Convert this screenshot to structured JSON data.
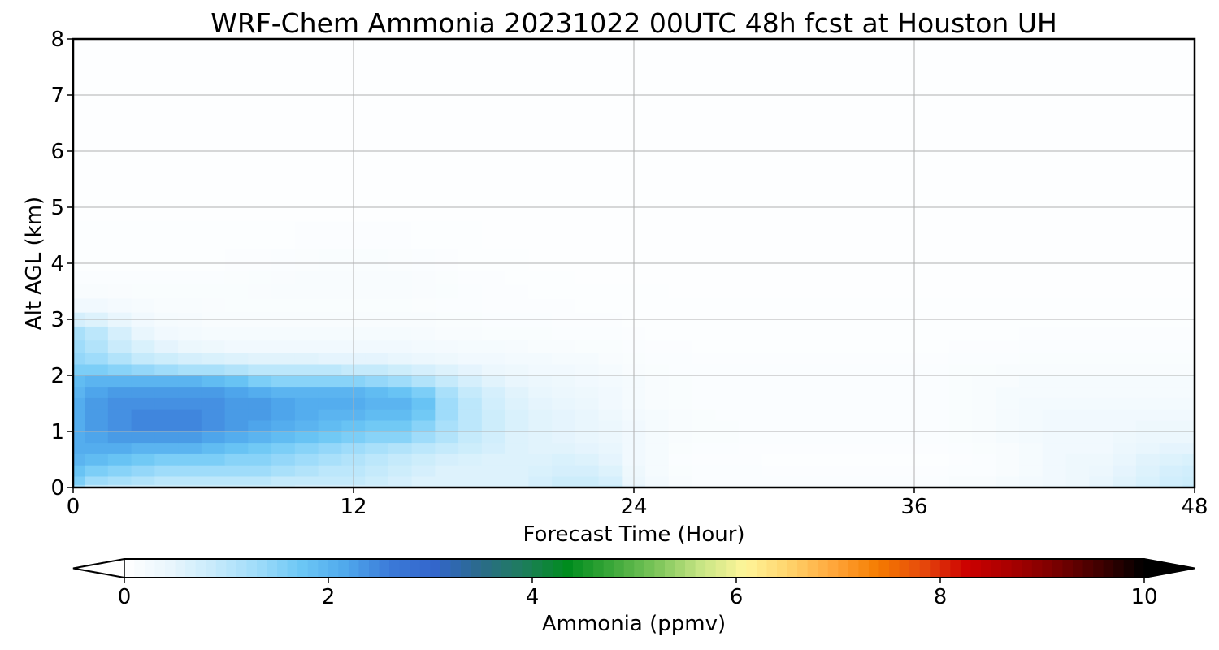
{
  "chart_data": {
    "type": "heatmap",
    "title": "WRF-Chem Ammonia  20231022 00UTC 48h fcst at Houston UH",
    "xlabel": "Forecast Time (Hour)",
    "ylabel": "Alt AGL (km)",
    "xlim": [
      0,
      48
    ],
    "ylim": [
      0,
      8
    ],
    "x_ticks": [
      "0",
      "12",
      "24",
      "36",
      "48"
    ],
    "y_ticks": [
      "0",
      "1",
      "2",
      "3",
      "4",
      "5",
      "6",
      "7",
      "8"
    ],
    "grid": true,
    "colorbar": {
      "label": "Ammonia  (ppmv)",
      "range": [
        0,
        10
      ],
      "ticks": [
        "0",
        "2",
        "4",
        "6",
        "8",
        "10"
      ],
      "extend": "both",
      "colors": [
        "#ffffff",
        "#eaf6fd",
        "#c8ebfb",
        "#9fdcfa",
        "#6cc7f5",
        "#4fa8ec",
        "#3b7ad8",
        "#3366cc",
        "#2b6a8c",
        "#1e7d5c",
        "#008c1e",
        "#3ca83a",
        "#7cc55a",
        "#c6e584",
        "#fff59a",
        "#ffd36b",
        "#ffa63a",
        "#f57c00",
        "#e64a0c",
        "#cc0000",
        "#a80000",
        "#7a0000",
        "#400000",
        "#000000"
      ]
    },
    "x": [
      0,
      1,
      2,
      3,
      4,
      5,
      6,
      7,
      8,
      9,
      10,
      11,
      12,
      13,
      14,
      15,
      16,
      17,
      18,
      19,
      20,
      21,
      22,
      23,
      24,
      25,
      26,
      27,
      28,
      29,
      30,
      31,
      32,
      33,
      34,
      35,
      36,
      37,
      38,
      39,
      40,
      41,
      42,
      43,
      44,
      45,
      46,
      47,
      48
    ],
    "z_levels": [
      0,
      0.1,
      0.3,
      0.5,
      0.7,
      0.9,
      1.1,
      1.3,
      1.5,
      1.7,
      1.9,
      2.1,
      2.3,
      2.5,
      2.75,
      3,
      3.25,
      3.5,
      3.75,
      4,
      4.5,
      5,
      6,
      7,
      8
    ],
    "values_ppmv": [
      [
        1.3,
        0.9,
        0.85,
        0.8,
        0.8,
        0.8,
        0.8,
        0.8,
        0.8,
        0.8,
        0.7,
        0.7,
        0.7,
        0.7,
        0.7,
        0.6,
        0.6,
        0.6,
        0.6,
        0.6,
        0.7,
        0.8,
        0.8,
        0.8,
        0.5,
        0.3,
        0.2,
        0.15,
        0.15,
        0.15,
        0.15,
        0.15,
        0.15,
        0.15,
        0.15,
        0.15,
        0.15,
        0.15,
        0.2,
        0.2,
        0.25,
        0.3,
        0.35,
        0.4,
        0.5,
        0.6,
        0.7,
        0.8,
        0.9
      ],
      [
        1.6,
        1.3,
        1.2,
        1.1,
        1.0,
        1.0,
        1.0,
        1.0,
        1.0,
        0.9,
        0.9,
        0.9,
        0.9,
        0.8,
        0.7,
        0.6,
        0.6,
        0.6,
        0.6,
        0.6,
        0.7,
        0.8,
        0.8,
        0.7,
        0.4,
        0.25,
        0.15,
        0.1,
        0.1,
        0.1,
        0.1,
        0.1,
        0.1,
        0.1,
        0.1,
        0.1,
        0.1,
        0.1,
        0.15,
        0.15,
        0.2,
        0.25,
        0.3,
        0.35,
        0.45,
        0.55,
        0.65,
        0.75,
        0.8
      ],
      [
        1.8,
        1.6,
        1.5,
        1.4,
        1.3,
        1.3,
        1.3,
        1.3,
        1.3,
        1.2,
        1.1,
        1.0,
        1.0,
        0.9,
        0.8,
        0.7,
        0.6,
        0.6,
        0.6,
        0.6,
        0.65,
        0.7,
        0.7,
        0.6,
        0.35,
        0.2,
        0.12,
        0.1,
        0.1,
        0.1,
        0.08,
        0.08,
        0.08,
        0.08,
        0.08,
        0.08,
        0.08,
        0.08,
        0.1,
        0.1,
        0.15,
        0.2,
        0.3,
        0.35,
        0.4,
        0.5,
        0.6,
        0.7,
        0.75
      ],
      [
        2.0,
        1.9,
        1.8,
        1.7,
        1.6,
        1.6,
        1.6,
        1.5,
        1.5,
        1.4,
        1.3,
        1.2,
        1.1,
        1.0,
        0.9,
        0.8,
        0.7,
        0.65,
        0.6,
        0.6,
        0.6,
        0.65,
        0.6,
        0.5,
        0.3,
        0.2,
        0.1,
        0.08,
        0.08,
        0.08,
        0.07,
        0.07,
        0.07,
        0.07,
        0.07,
        0.07,
        0.07,
        0.07,
        0.08,
        0.1,
        0.15,
        0.2,
        0.3,
        0.35,
        0.35,
        0.45,
        0.55,
        0.6,
        0.65
      ],
      [
        2.1,
        2.1,
        2.1,
        2.0,
        2.0,
        2.0,
        1.9,
        1.8,
        1.7,
        1.6,
        1.5,
        1.4,
        1.3,
        1.2,
        1.1,
        1.0,
        0.9,
        0.8,
        0.7,
        0.6,
        0.55,
        0.55,
        0.5,
        0.45,
        0.3,
        0.2,
        0.12,
        0.1,
        0.1,
        0.08,
        0.08,
        0.08,
        0.08,
        0.08,
        0.08,
        0.08,
        0.08,
        0.08,
        0.1,
        0.12,
        0.15,
        0.2,
        0.3,
        0.3,
        0.3,
        0.4,
        0.45,
        0.5,
        0.5
      ],
      [
        2.1,
        2.2,
        2.3,
        2.3,
        2.3,
        2.3,
        2.2,
        2.1,
        2.0,
        1.9,
        1.8,
        1.7,
        1.6,
        1.5,
        1.5,
        1.3,
        1.1,
        0.9,
        0.75,
        0.6,
        0.55,
        0.5,
        0.45,
        0.4,
        0.3,
        0.2,
        0.15,
        0.12,
        0.12,
        0.1,
        0.1,
        0.1,
        0.1,
        0.1,
        0.1,
        0.1,
        0.1,
        0.1,
        0.12,
        0.15,
        0.2,
        0.25,
        0.3,
        0.3,
        0.3,
        0.35,
        0.4,
        0.4,
        0.4
      ],
      [
        2.1,
        2.3,
        2.4,
        2.5,
        2.5,
        2.5,
        2.4,
        2.3,
        2.2,
        2.1,
        2.0,
        1.9,
        1.8,
        1.7,
        1.7,
        1.5,
        1.2,
        1.0,
        0.8,
        0.65,
        0.55,
        0.5,
        0.45,
        0.4,
        0.3,
        0.2,
        0.15,
        0.12,
        0.12,
        0.1,
        0.1,
        0.1,
        0.1,
        0.1,
        0.1,
        0.1,
        0.1,
        0.1,
        0.12,
        0.15,
        0.2,
        0.25,
        0.3,
        0.3,
        0.3,
        0.3,
        0.35,
        0.35,
        0.35
      ],
      [
        2.1,
        2.3,
        2.4,
        2.5,
        2.5,
        2.5,
        2.4,
        2.3,
        2.3,
        2.2,
        2.1,
        2.0,
        2.0,
        1.9,
        1.9,
        1.7,
        1.3,
        1.0,
        0.8,
        0.65,
        0.55,
        0.5,
        0.45,
        0.35,
        0.25,
        0.2,
        0.15,
        0.12,
        0.1,
        0.1,
        0.1,
        0.1,
        0.1,
        0.1,
        0.1,
        0.1,
        0.1,
        0.1,
        0.12,
        0.15,
        0.2,
        0.25,
        0.3,
        0.3,
        0.3,
        0.3,
        0.3,
        0.3,
        0.3
      ],
      [
        2.1,
        2.3,
        2.4,
        2.4,
        2.4,
        2.4,
        2.4,
        2.3,
        2.3,
        2.2,
        2.1,
        2.1,
        2.1,
        2.0,
        2.0,
        1.8,
        1.3,
        1.0,
        0.75,
        0.6,
        0.5,
        0.45,
        0.4,
        0.3,
        0.2,
        0.15,
        0.12,
        0.1,
        0.1,
        0.1,
        0.1,
        0.1,
        0.1,
        0.1,
        0.1,
        0.1,
        0.1,
        0.1,
        0.12,
        0.15,
        0.2,
        0.25,
        0.25,
        0.25,
        0.25,
        0.25,
        0.25,
        0.25,
        0.25
      ],
      [
        2.0,
        2.2,
        2.3,
        2.3,
        2.3,
        2.3,
        2.3,
        2.2,
        2.1,
        2.0,
        2.0,
        2.0,
        2.0,
        1.9,
        1.8,
        1.6,
        1.2,
        0.9,
        0.7,
        0.55,
        0.45,
        0.4,
        0.35,
        0.3,
        0.2,
        0.15,
        0.12,
        0.1,
        0.1,
        0.1,
        0.1,
        0.1,
        0.1,
        0.1,
        0.1,
        0.1,
        0.1,
        0.1,
        0.12,
        0.15,
        0.2,
        0.2,
        0.2,
        0.2,
        0.2,
        0.2,
        0.2,
        0.2,
        0.2
      ],
      [
        1.9,
        2.0,
        2.0,
        2.0,
        2.0,
        2.0,
        1.9,
        1.8,
        1.6,
        1.5,
        1.5,
        1.5,
        1.5,
        1.4,
        1.3,
        1.1,
        0.9,
        0.7,
        0.55,
        0.45,
        0.4,
        0.35,
        0.3,
        0.25,
        0.2,
        0.15,
        0.12,
        0.1,
        0.1,
        0.1,
        0.1,
        0.1,
        0.1,
        0.1,
        0.1,
        0.1,
        0.1,
        0.1,
        0.12,
        0.15,
        0.15,
        0.2,
        0.2,
        0.2,
        0.2,
        0.2,
        0.2,
        0.2,
        0.2
      ],
      [
        1.6,
        1.6,
        1.5,
        1.4,
        1.3,
        1.2,
        1.2,
        1.1,
        1.0,
        1.0,
        1.0,
        1.0,
        0.9,
        0.9,
        0.8,
        0.7,
        0.6,
        0.5,
        0.4,
        0.35,
        0.3,
        0.3,
        0.25,
        0.2,
        0.15,
        0.12,
        0.1,
        0.1,
        0.1,
        0.1,
        0.1,
        0.1,
        0.1,
        0.1,
        0.1,
        0.1,
        0.1,
        0.1,
        0.12,
        0.12,
        0.15,
        0.15,
        0.15,
        0.15,
        0.15,
        0.15,
        0.15,
        0.15,
        0.15
      ],
      [
        1.4,
        1.3,
        1.1,
        0.9,
        0.8,
        0.7,
        0.65,
        0.6,
        0.55,
        0.55,
        0.55,
        0.5,
        0.5,
        0.5,
        0.45,
        0.4,
        0.35,
        0.3,
        0.3,
        0.25,
        0.25,
        0.2,
        0.2,
        0.15,
        0.12,
        0.1,
        0.1,
        0.08,
        0.08,
        0.08,
        0.08,
        0.08,
        0.08,
        0.08,
        0.08,
        0.08,
        0.08,
        0.08,
        0.1,
        0.1,
        0.1,
        0.12,
        0.12,
        0.12,
        0.12,
        0.12,
        0.12,
        0.12,
        0.12
      ],
      [
        1.3,
        1.1,
        0.85,
        0.65,
        0.5,
        0.4,
        0.35,
        0.3,
        0.3,
        0.3,
        0.3,
        0.3,
        0.3,
        0.3,
        0.28,
        0.25,
        0.22,
        0.2,
        0.2,
        0.18,
        0.15,
        0.15,
        0.12,
        0.12,
        0.1,
        0.08,
        0.08,
        0.07,
        0.07,
        0.07,
        0.07,
        0.07,
        0.07,
        0.07,
        0.07,
        0.07,
        0.07,
        0.07,
        0.08,
        0.08,
        0.08,
        0.1,
        0.1,
        0.1,
        0.1,
        0.1,
        0.1,
        0.1,
        0.1
      ],
      [
        1.2,
        1.0,
        0.7,
        0.45,
        0.3,
        0.25,
        0.2,
        0.2,
        0.2,
        0.2,
        0.2,
        0.2,
        0.2,
        0.2,
        0.2,
        0.18,
        0.15,
        0.15,
        0.12,
        0.12,
        0.12,
        0.1,
        0.1,
        0.1,
        0.08,
        0.07,
        0.07,
        0.06,
        0.06,
        0.06,
        0.06,
        0.06,
        0.06,
        0.06,
        0.06,
        0.06,
        0.06,
        0.06,
        0.07,
        0.07,
        0.07,
        0.08,
        0.08,
        0.08,
        0.08,
        0.08,
        0.08,
        0.08,
        0.08
      ],
      [
        0.7,
        0.6,
        0.45,
        0.3,
        0.2,
        0.18,
        0.15,
        0.15,
        0.15,
        0.15,
        0.15,
        0.15,
        0.15,
        0.15,
        0.15,
        0.14,
        0.12,
        0.12,
        0.1,
        0.1,
        0.1,
        0.09,
        0.08,
        0.08,
        0.07,
        0.06,
        0.06,
        0.06,
        0.06,
        0.06,
        0.06,
        0.06,
        0.06,
        0.06,
        0.06,
        0.06,
        0.06,
        0.06,
        0.06,
        0.06,
        0.06,
        0.07,
        0.07,
        0.07,
        0.07,
        0.07,
        0.07,
        0.07,
        0.07
      ],
      [
        0.3,
        0.28,
        0.22,
        0.18,
        0.15,
        0.14,
        0.13,
        0.12,
        0.12,
        0.12,
        0.12,
        0.12,
        0.12,
        0.12,
        0.12,
        0.11,
        0.1,
        0.1,
        0.09,
        0.09,
        0.08,
        0.08,
        0.07,
        0.07,
        0.06,
        0.06,
        0.06,
        0.06,
        0.06,
        0.06,
        0.06,
        0.06,
        0.06,
        0.06,
        0.06,
        0.06,
        0.06,
        0.06,
        0.06,
        0.06,
        0.06,
        0.06,
        0.06,
        0.06,
        0.06,
        0.06,
        0.06,
        0.06,
        0.06
      ],
      [
        0.15,
        0.14,
        0.13,
        0.12,
        0.12,
        0.12,
        0.12,
        0.12,
        0.13,
        0.14,
        0.14,
        0.14,
        0.14,
        0.14,
        0.14,
        0.13,
        0.12,
        0.1,
        0.09,
        0.08,
        0.07,
        0.07,
        0.06,
        0.06,
        0.06,
        0.06,
        0.05,
        0.05,
        0.05,
        0.05,
        0.05,
        0.05,
        0.05,
        0.05,
        0.05,
        0.05,
        0.05,
        0.05,
        0.05,
        0.05,
        0.05,
        0.05,
        0.05,
        0.05,
        0.05,
        0.05,
        0.05,
        0.05,
        0.05
      ],
      [
        0.1,
        0.1,
        0.1,
        0.1,
        0.1,
        0.1,
        0.1,
        0.11,
        0.12,
        0.13,
        0.14,
        0.15,
        0.15,
        0.15,
        0.14,
        0.13,
        0.11,
        0.09,
        0.08,
        0.07,
        0.06,
        0.06,
        0.05,
        0.05,
        0.05,
        0.05,
        0.05,
        0.05,
        0.05,
        0.05,
        0.05,
        0.05,
        0.05,
        0.05,
        0.05,
        0.05,
        0.05,
        0.05,
        0.05,
        0.05,
        0.05,
        0.05,
        0.05,
        0.05,
        0.05,
        0.05,
        0.05,
        0.05,
        0.05
      ],
      [
        0.07,
        0.07,
        0.07,
        0.07,
        0.07,
        0.07,
        0.07,
        0.08,
        0.09,
        0.1,
        0.11,
        0.12,
        0.12,
        0.12,
        0.11,
        0.1,
        0.08,
        0.07,
        0.06,
        0.06,
        0.05,
        0.05,
        0.05,
        0.05,
        0.05,
        0.05,
        0.05,
        0.05,
        0.05,
        0.05,
        0.05,
        0.05,
        0.05,
        0.05,
        0.05,
        0.05,
        0.05,
        0.05,
        0.05,
        0.05,
        0.05,
        0.05,
        0.05,
        0.05,
        0.05,
        0.05,
        0.05,
        0.05,
        0.05
      ],
      [
        0.06,
        0.06,
        0.06,
        0.06,
        0.06,
        0.06,
        0.06,
        0.06,
        0.07,
        0.07,
        0.08,
        0.08,
        0.08,
        0.08,
        0.08,
        0.07,
        0.06,
        0.06,
        0.05,
        0.05,
        0.05,
        0.05,
        0.05,
        0.05,
        0.05,
        0.05,
        0.05,
        0.05,
        0.05,
        0.05,
        0.05,
        0.05,
        0.05,
        0.05,
        0.05,
        0.05,
        0.05,
        0.05,
        0.05,
        0.05,
        0.05,
        0.05,
        0.05,
        0.05,
        0.05,
        0.05,
        0.05,
        0.05,
        0.05
      ],
      [
        0.05,
        0.05,
        0.05,
        0.05,
        0.05,
        0.05,
        0.05,
        0.05,
        0.05,
        0.05,
        0.05,
        0.05,
        0.05,
        0.05,
        0.05,
        0.05,
        0.05,
        0.05,
        0.05,
        0.05,
        0.05,
        0.05,
        0.05,
        0.05,
        0.05,
        0.05,
        0.05,
        0.05,
        0.05,
        0.05,
        0.05,
        0.05,
        0.05,
        0.05,
        0.05,
        0.05,
        0.05,
        0.05,
        0.05,
        0.05,
        0.05,
        0.05,
        0.05,
        0.05,
        0.05,
        0.05,
        0.05,
        0.05,
        0.05
      ],
      [
        0.05,
        0.05,
        0.05,
        0.05,
        0.05,
        0.05,
        0.05,
        0.05,
        0.05,
        0.05,
        0.05,
        0.05,
        0.05,
        0.05,
        0.05,
        0.05,
        0.05,
        0.05,
        0.05,
        0.05,
        0.05,
        0.05,
        0.05,
        0.05,
        0.05,
        0.05,
        0.05,
        0.05,
        0.05,
        0.05,
        0.05,
        0.05,
        0.05,
        0.05,
        0.05,
        0.05,
        0.05,
        0.05,
        0.05,
        0.05,
        0.05,
        0.05,
        0.05,
        0.05,
        0.05,
        0.05,
        0.05,
        0.05,
        0.05
      ],
      [
        0.05,
        0.05,
        0.05,
        0.05,
        0.05,
        0.05,
        0.05,
        0.05,
        0.05,
        0.05,
        0.05,
        0.05,
        0.05,
        0.05,
        0.05,
        0.05,
        0.05,
        0.05,
        0.05,
        0.05,
        0.05,
        0.05,
        0.05,
        0.05,
        0.05,
        0.05,
        0.05,
        0.05,
        0.05,
        0.05,
        0.05,
        0.05,
        0.05,
        0.05,
        0.05,
        0.05,
        0.05,
        0.05,
        0.05,
        0.05,
        0.05,
        0.05,
        0.05,
        0.05,
        0.05,
        0.05,
        0.05,
        0.05,
        0.05
      ],
      [
        0.05,
        0.05,
        0.05,
        0.05,
        0.05,
        0.05,
        0.05,
        0.05,
        0.05,
        0.05,
        0.05,
        0.05,
        0.05,
        0.05,
        0.05,
        0.05,
        0.05,
        0.05,
        0.05,
        0.05,
        0.05,
        0.05,
        0.05,
        0.05,
        0.05,
        0.05,
        0.05,
        0.05,
        0.05,
        0.05,
        0.05,
        0.05,
        0.05,
        0.05,
        0.05,
        0.05,
        0.05,
        0.05,
        0.05,
        0.05,
        0.05,
        0.05,
        0.05,
        0.05,
        0.05,
        0.05,
        0.05,
        0.05,
        0.05
      ]
    ]
  }
}
